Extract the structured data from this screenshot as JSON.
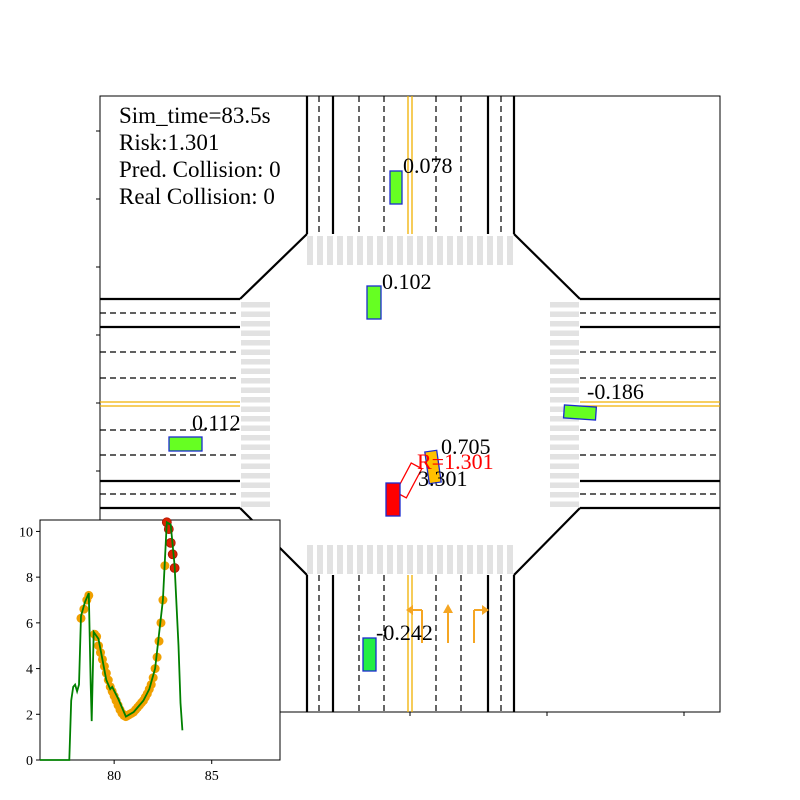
{
  "hud": {
    "sim_time": "Sim_time=83.5s",
    "risk": "Risk:1.301",
    "pred_collision": "Pred. Collision: 0",
    "real_collision": "Real Collision: 0"
  },
  "vehicles": [
    {
      "id": "v-north-far",
      "label": "0.078",
      "color": "#66ff22",
      "label_color": "#000000"
    },
    {
      "id": "v-north-near",
      "label": "0.102",
      "color": "#66ff22",
      "label_color": "#000000"
    },
    {
      "id": "v-west",
      "label": "0.112",
      "color": "#66ff22",
      "label_color": "#000000"
    },
    {
      "id": "v-east",
      "label": "-0.186",
      "color": "#66ff22",
      "label_color": "#000000"
    },
    {
      "id": "v-south",
      "label": "-0.242",
      "color": "#22ee44",
      "label_color": "#000000"
    },
    {
      "id": "v-center",
      "label": "0.705",
      "color": "#ffc000",
      "label_color": "#000000"
    },
    {
      "id": "v-ego",
      "label": "3.301",
      "color": "#ff0000",
      "label_color": "#000000"
    }
  ],
  "ego_risk_label": "R=1.301",
  "colors": {
    "road_line": "#000000",
    "center_line": "#f0b000",
    "crosswalk": "#e2e2e2",
    "vehicle_border": "#1a2bd0",
    "risk_text": "#ff0000",
    "plot_line": "#008000",
    "plot_marker": "#f0a000",
    "plot_marker_recent": "#dd2200",
    "arrow": "#f5a623"
  },
  "chart_data": {
    "type": "line",
    "xlim": [
      76.2,
      88.5
    ],
    "ylim": [
      0,
      10.5
    ],
    "xticks": [
      80,
      85
    ],
    "yticks": [
      0,
      2,
      4,
      6,
      8,
      10
    ],
    "x_tick_labels": [
      "80",
      "85"
    ],
    "y_tick_labels": [
      "0",
      "2",
      "4",
      "6",
      "8",
      "10"
    ],
    "line": [
      [
        76.2,
        0.0
      ],
      [
        77.7,
        0.0
      ],
      [
        77.8,
        2.6
      ],
      [
        77.9,
        3.2
      ],
      [
        78.0,
        3.3
      ],
      [
        78.1,
        3.0
      ],
      [
        78.2,
        3.3
      ],
      [
        78.3,
        6.3
      ],
      [
        78.5,
        6.9
      ],
      [
        78.7,
        7.3
      ],
      [
        78.8,
        3.3
      ],
      [
        78.85,
        1.7
      ],
      [
        78.95,
        5.6
      ],
      [
        79.2,
        5.3
      ],
      [
        79.6,
        3.5
      ],
      [
        79.8,
        3.1
      ],
      [
        79.9,
        3.2
      ],
      [
        80.2,
        2.7
      ],
      [
        80.6,
        1.9
      ],
      [
        81.0,
        2.1
      ],
      [
        81.5,
        2.6
      ],
      [
        81.8,
        3.1
      ],
      [
        82.1,
        4.0
      ],
      [
        82.5,
        7.0
      ],
      [
        82.7,
        10.4
      ],
      [
        82.9,
        10.3
      ],
      [
        83.1,
        8.5
      ],
      [
        83.3,
        5.0
      ],
      [
        83.4,
        2.5
      ],
      [
        83.5,
        1.3
      ]
    ],
    "markers": [
      [
        78.3,
        6.2
      ],
      [
        78.45,
        6.6
      ],
      [
        78.6,
        7.0
      ],
      [
        78.7,
        7.2
      ],
      [
        79.0,
        5.5
      ],
      [
        79.1,
        5.4
      ],
      [
        79.2,
        5.0
      ],
      [
        79.3,
        4.7
      ],
      [
        79.4,
        4.4
      ],
      [
        79.5,
        4.1
      ],
      [
        79.6,
        3.8
      ],
      [
        79.7,
        3.5
      ],
      [
        79.8,
        3.2
      ],
      [
        79.9,
        3.0
      ],
      [
        80.0,
        2.8
      ],
      [
        80.1,
        2.6
      ],
      [
        80.2,
        2.4
      ],
      [
        80.3,
        2.2
      ],
      [
        80.4,
        2.05
      ],
      [
        80.5,
        1.95
      ],
      [
        80.6,
        1.9
      ],
      [
        80.7,
        1.95
      ],
      [
        80.8,
        2.0
      ],
      [
        80.9,
        2.05
      ],
      [
        81.0,
        2.1
      ],
      [
        81.1,
        2.2
      ],
      [
        81.2,
        2.3
      ],
      [
        81.3,
        2.4
      ],
      [
        81.4,
        2.5
      ],
      [
        81.5,
        2.6
      ],
      [
        81.6,
        2.75
      ],
      [
        81.7,
        2.9
      ],
      [
        81.8,
        3.1
      ],
      [
        81.9,
        3.3
      ],
      [
        82.0,
        3.6
      ],
      [
        82.1,
        4.0
      ],
      [
        82.2,
        4.5
      ],
      [
        82.3,
        5.2
      ],
      [
        82.4,
        6.0
      ],
      [
        82.5,
        7.0
      ],
      [
        82.6,
        8.5
      ]
    ],
    "recent_markers": [
      [
        82.7,
        10.4
      ],
      [
        82.8,
        10.1
      ],
      [
        82.9,
        9.5
      ],
      [
        83.0,
        9.0
      ],
      [
        83.1,
        8.4
      ]
    ]
  }
}
